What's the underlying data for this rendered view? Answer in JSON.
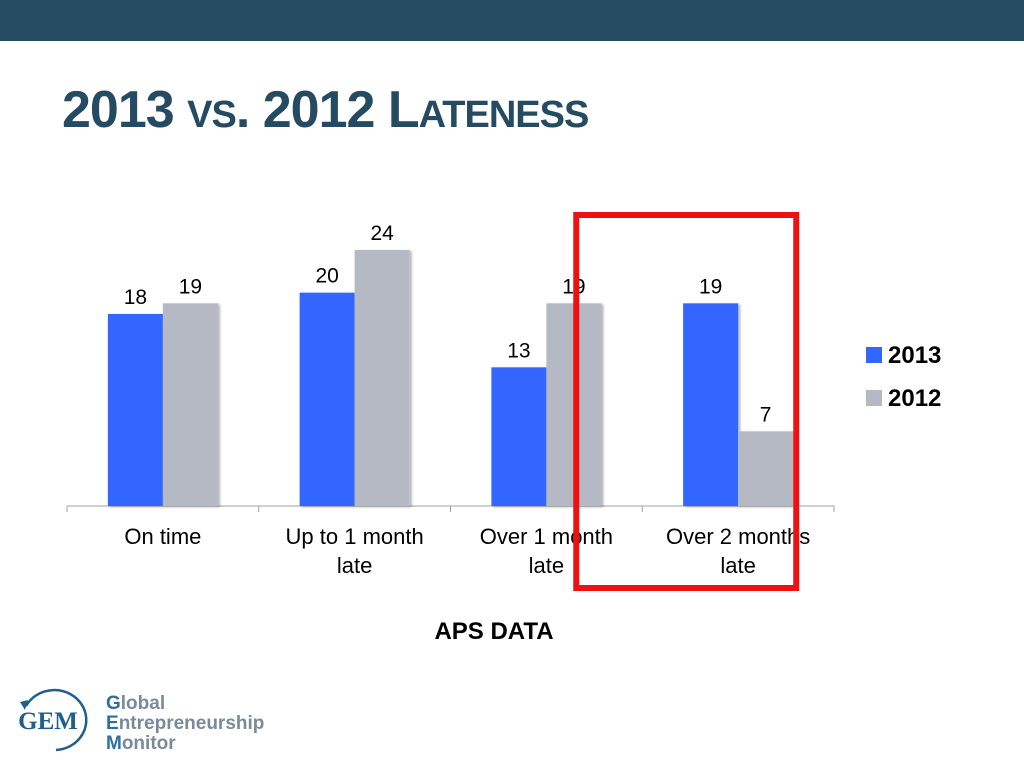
{
  "slide": {
    "title_parts": [
      "2013 ",
      "VS",
      ". 2012 L",
      "ATENESS"
    ],
    "caption": "APS DATA",
    "colors": {
      "header_band": "#254b63",
      "title": "#254b63",
      "highlight_box": "#ee1111"
    }
  },
  "chart_data": {
    "type": "bar",
    "categories": [
      [
        "On time"
      ],
      [
        "Up to 1 month",
        "late"
      ],
      [
        "Over 1 month",
        "late"
      ],
      [
        "Over 2 months",
        "late"
      ]
    ],
    "series": [
      {
        "name": "2013",
        "values": [
          18,
          20,
          13,
          19
        ],
        "color": "#3366ff"
      },
      {
        "name": "2012",
        "values": [
          19,
          24,
          19,
          7
        ],
        "color": "#b4b9c3"
      }
    ],
    "ylim": [
      0,
      24
    ],
    "legend": "right",
    "data_labels": true,
    "grid": false,
    "highlight_category": 3
  },
  "logo": {
    "emblem_text": "GEM",
    "name_lines": [
      {
        "initial": "G",
        "rest": "lobal"
      },
      {
        "initial": "E",
        "rest": "ntrepreneurship"
      },
      {
        "initial": "M",
        "rest": "onitor"
      }
    ]
  }
}
